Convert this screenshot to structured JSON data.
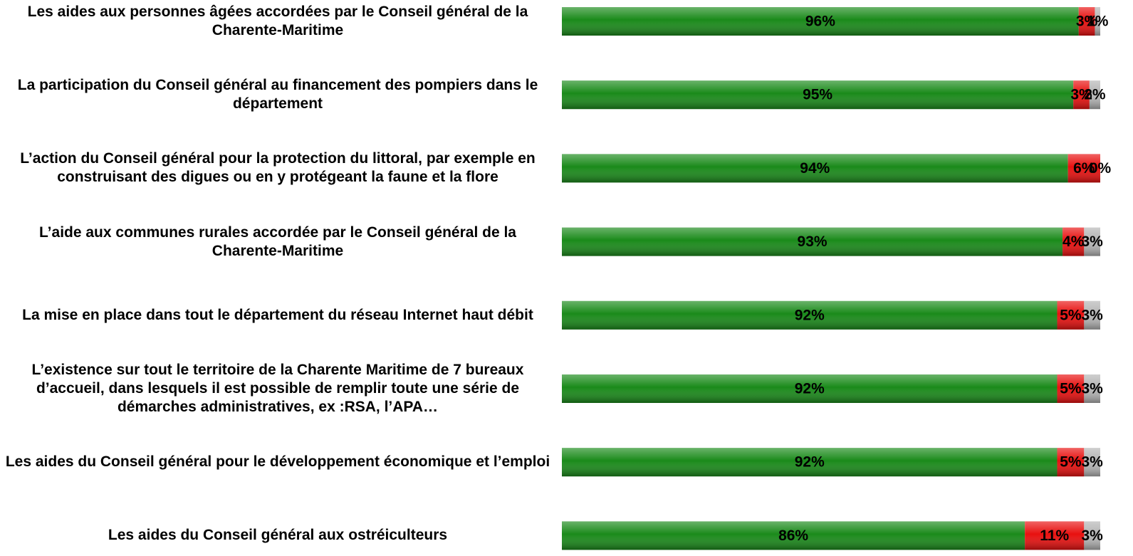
{
  "chart_data": {
    "type": "stacked-bar",
    "categories": [
      "Les aides aux personnes âgées accordées par le Conseil général de la Charente-Maritime",
      "La participation du Conseil général au financement des pompiers dans le département",
      "L’action du Conseil général pour la protection du littoral, par exemple en construisant des digues ou en y protégeant la faune et la flore",
      "L’aide aux communes rurales accordée par le Conseil général de la Charente-Maritime",
      "La mise en place dans tout le département du réseau Internet haut débit",
      "L’existence sur tout le territoire de la Charente Maritime de 7 bureaux d’accueil, dans lesquels il est possible de remplir toute une série de démarches administratives, ex :RSA, l’APA…",
      "Les aides du Conseil général pour le développement économique et l’emploi",
      "Les  aides du Conseil général aux ostréiculteurs"
    ],
    "series": [
      {
        "color": "#1a8a1a",
        "values": [
          96,
          95,
          94,
          93,
          92,
          92,
          92,
          86
        ],
        "value_labels": [
          "96%",
          "95%",
          "94%",
          "93%",
          "92%",
          "92%",
          "92%",
          "86%"
        ]
      },
      {
        "color": "#e8100f",
        "values": [
          3,
          3,
          6,
          4,
          5,
          5,
          5,
          11
        ],
        "value_labels": [
          "3%",
          "3%",
          "6%",
          "4%",
          "5%",
          "5%",
          "5%",
          "11%"
        ]
      },
      {
        "color": "#b4b4b4",
        "values": [
          1,
          2,
          0,
          3,
          3,
          3,
          3,
          3
        ],
        "value_labels": [
          "1%",
          "2%",
          "0%",
          "3%",
          "3%",
          "3%",
          "3%",
          "3%"
        ]
      }
    ],
    "xlim": [
      0,
      100
    ]
  }
}
